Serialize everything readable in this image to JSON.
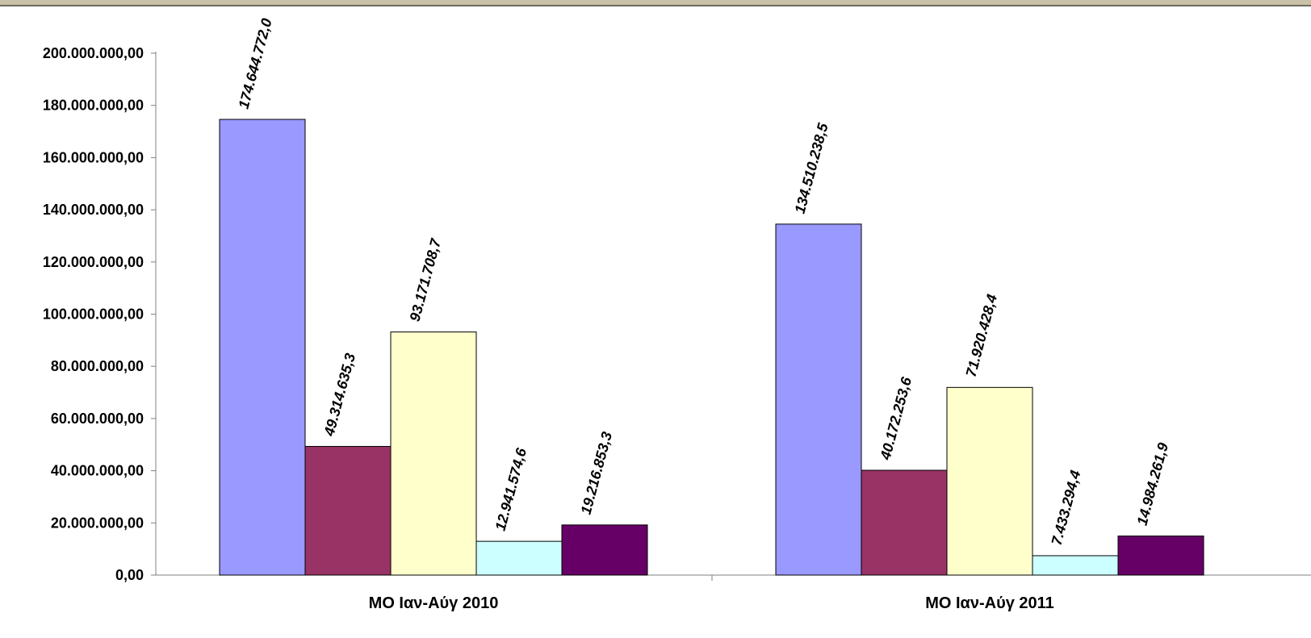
{
  "chart_data": {
    "type": "bar",
    "categories": [
      "MO Ιαν-Αύγ 2010",
      "MO Ιαν-Αύγ 2011"
    ],
    "series": [
      {
        "color": "#9999ff",
        "values": [
          174644772.0,
          134510238.5
        ]
      },
      {
        "color": "#993366",
        "values": [
          49314635.3,
          40172253.6
        ]
      },
      {
        "color": "#ffffcc",
        "values": [
          93171708.7,
          71920428.4
        ]
      },
      {
        "color": "#ccffff",
        "values": [
          12941574.6,
          7433294.4
        ]
      },
      {
        "color": "#660066",
        "values": [
          19216853.3,
          14984261.9
        ]
      }
    ],
    "value_labels": [
      [
        "174.644.772,0",
        "134.510.238,5"
      ],
      [
        "49.314.635,3",
        "40.172.253,6"
      ],
      [
        "93.171.708,7",
        "71.920.428,4"
      ],
      [
        "12.941.574,6",
        "7.433.294,4"
      ],
      [
        "19.216.853,3",
        "14.984.261,9"
      ]
    ],
    "y_ticks": [
      {
        "value": 0,
        "label": "0,00"
      },
      {
        "value": 20000000,
        "label": "20.000.000,00"
      },
      {
        "value": 40000000,
        "label": "40.000.000,00"
      },
      {
        "value": 60000000,
        "label": "60.000.000,00"
      },
      {
        "value": 80000000,
        "label": "80.000.000,00"
      },
      {
        "value": 100000000,
        "label": "100.000.000,00"
      },
      {
        "value": 120000000,
        "label": "120.000.000,00"
      },
      {
        "value": 140000000,
        "label": "140.000.000,00"
      },
      {
        "value": 160000000,
        "label": "160.000.000,00"
      },
      {
        "value": 180000000,
        "label": "180.000.000,00"
      },
      {
        "value": 200000000,
        "label": "200.000.000,00"
      }
    ],
    "ylim": [
      0,
      200000000
    ],
    "grid": false,
    "legend": "none",
    "title": "",
    "xlabel": "",
    "ylabel": ""
  }
}
